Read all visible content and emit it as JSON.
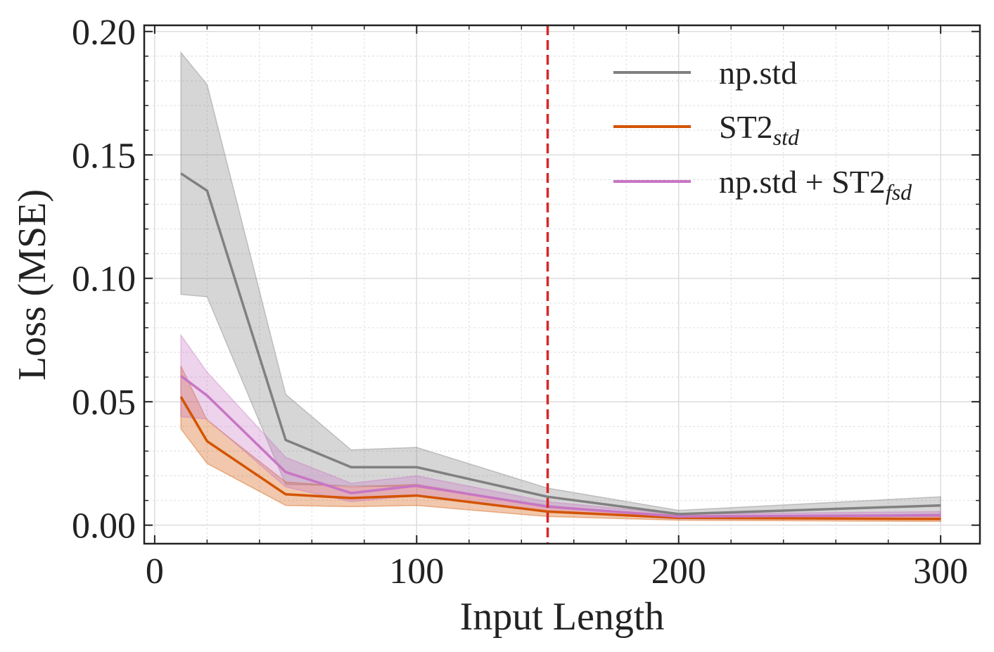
{
  "chart_data": {
    "type": "line",
    "title": "",
    "xlabel": "Input Length",
    "ylabel": "Loss (MSE)",
    "xlim": [
      -4,
      315
    ],
    "ylim": [
      -0.0075,
      0.2025
    ],
    "x_ticks": [
      0,
      100,
      200,
      300
    ],
    "y_ticks": [
      0.0,
      0.05,
      0.1,
      0.15,
      0.2
    ],
    "x_tick_labels": [
      "0",
      "100",
      "200",
      "300"
    ],
    "y_tick_labels": [
      "0.00",
      "0.05",
      "0.10",
      "0.15",
      "0.20"
    ],
    "grid": true,
    "legend_position": "top-right",
    "x": [
      10,
      20,
      50,
      75,
      100,
      150,
      200,
      300
    ],
    "series": [
      {
        "name": "np.std",
        "legend_main": "np.std",
        "legend_sub": "",
        "legend_suffix": "",
        "color": "#808080",
        "values": [
          0.1425,
          0.1355,
          0.0345,
          0.0235,
          0.0235,
          0.0115,
          0.0045,
          0.008
        ],
        "upper": [
          0.1915,
          0.1785,
          0.053,
          0.0305,
          0.0315,
          0.015,
          0.006,
          0.0115
        ],
        "lower": [
          0.0935,
          0.0925,
          0.0165,
          0.016,
          0.0155,
          0.008,
          0.003,
          0.0045
        ]
      },
      {
        "name": "ST2_std",
        "legend_main": "ST2",
        "legend_sub": "std",
        "legend_suffix": "",
        "color": "#d35400",
        "values": [
          0.052,
          0.034,
          0.0125,
          0.011,
          0.012,
          0.0055,
          0.003,
          0.0025
        ],
        "upper": [
          0.0645,
          0.0425,
          0.0175,
          0.0155,
          0.0165,
          0.0075,
          0.004,
          0.0035
        ],
        "lower": [
          0.039,
          0.025,
          0.008,
          0.0075,
          0.008,
          0.0035,
          0.002,
          0.0015
        ]
      },
      {
        "name": "np.std + ST2_fsd",
        "legend_main": "np.std + ST2",
        "legend_sub": "fsd",
        "legend_suffix": "",
        "color": "#c875c4",
        "values": [
          0.0605,
          0.0525,
          0.0215,
          0.013,
          0.016,
          0.0075,
          0.0035,
          0.004
        ],
        "upper": [
          0.077,
          0.062,
          0.0275,
          0.017,
          0.02,
          0.0095,
          0.0045,
          0.0055
        ],
        "lower": [
          0.044,
          0.043,
          0.0155,
          0.0095,
          0.012,
          0.0055,
          0.0025,
          0.0025
        ]
      }
    ],
    "vline": {
      "x": 150,
      "color": "#d62728",
      "style": "dashed"
    }
  }
}
